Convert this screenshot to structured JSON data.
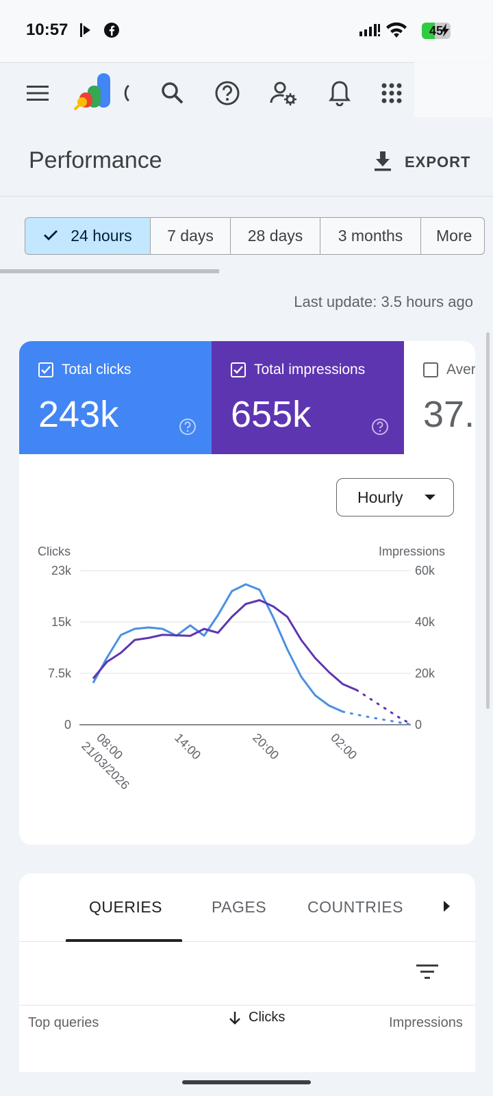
{
  "status": {
    "time": "10:57",
    "battery": "45",
    "battery_level": 0.45
  },
  "header": {
    "icons": [
      "menu-icon",
      "google-ads-logo",
      "search-icon",
      "help-icon",
      "manage-access-icon",
      "notifications-icon",
      "apps-grid-icon"
    ]
  },
  "page": {
    "title": "Performance",
    "export_label": "EXPORT"
  },
  "date_range": {
    "options": [
      {
        "label": "24 hours",
        "selected": true
      },
      {
        "label": "7 days",
        "selected": false
      },
      {
        "label": "28 days",
        "selected": false
      },
      {
        "label": "3 months",
        "selected": false
      },
      {
        "label": "More",
        "selected": false
      }
    ]
  },
  "last_update": "Last update: 3.5 hours ago",
  "metrics": [
    {
      "label": "Total clicks",
      "value": "243k",
      "checked": true,
      "color": "#4285f4"
    },
    {
      "label": "Total impressions",
      "value": "655k",
      "checked": true,
      "color": "#5e35b1"
    },
    {
      "label": "Aver",
      "value": "37.",
      "checked": false,
      "color": "#ffffff"
    }
  ],
  "granularity": "Hourly",
  "chart_data": {
    "type": "line",
    "y_left_label": "Clicks",
    "y_right_label": "Impressions",
    "y_left_ticks": [
      "23k",
      "15k",
      "7.5k",
      "0"
    ],
    "y_right_ticks": [
      "60k",
      "40k",
      "20k",
      "0"
    ],
    "y_left_range": [
      0,
      22500
    ],
    "y_right_range": [
      0,
      60000
    ],
    "x_ticks": [
      {
        "label": "08:00",
        "sub": "21/03/2026"
      },
      {
        "label": "14:00",
        "sub": ""
      },
      {
        "label": "20:00",
        "sub": ""
      },
      {
        "label": "02:00",
        "sub": ""
      }
    ],
    "series": [
      {
        "name": "Clicks",
        "axis": "left",
        "color": "#4a90e2",
        "values": [
          6100,
          9800,
          13100,
          14000,
          14200,
          14000,
          13000,
          14500,
          13000,
          16000,
          19500,
          20500,
          19700,
          15600,
          11000,
          7000,
          4300,
          2800,
          1900
        ],
        "projected": [
          1900,
          1200,
          600,
          0
        ]
      },
      {
        "name": "Impressions",
        "axis": "right",
        "color": "#5e35b1",
        "values": [
          18000,
          24500,
          28000,
          33000,
          33800,
          35000,
          34800,
          34600,
          37300,
          35800,
          42000,
          47000,
          48500,
          46000,
          42000,
          33000,
          26000,
          20500,
          15800,
          13500
        ],
        "projected": [
          13500,
          10000,
          6500,
          3000,
          0
        ]
      }
    ]
  },
  "tabs": {
    "items": [
      "QUERIES",
      "PAGES",
      "COUNTRIES"
    ],
    "active": 0
  },
  "table": {
    "columns": [
      "Top queries",
      "Clicks",
      "Impressions"
    ]
  }
}
